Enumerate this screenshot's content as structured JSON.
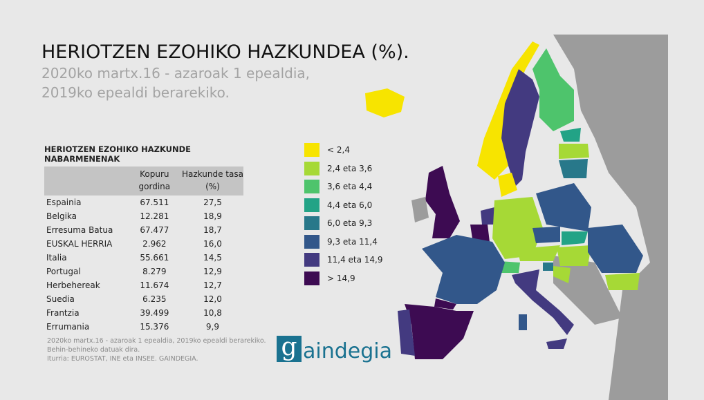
{
  "title": "HERIOTZEN EZOHIKO HAZKUNDEA (%).",
  "subtitle_1": "2020ko martx.16 - azaroak 1 epealdia,",
  "subtitle_2": "2019ko epealdi berarekiko.",
  "table": {
    "title": "HERIOTZEN EZOHIKO HAZKUNDE NABARMENENAK",
    "col2": "Kopuru gordina",
    "col3": "Hazkunde tasa (%)",
    "rows": [
      [
        "Espainia",
        "67.511",
        "27,5"
      ],
      [
        "Belgika",
        "12.281",
        "18,9"
      ],
      [
        "Erresuma Batua",
        "67.477",
        "18,7"
      ],
      [
        "EUSKAL HERRIA",
        "2.962",
        "16,0"
      ],
      [
        "Italia",
        "55.661",
        "14,5"
      ],
      [
        "Portugal",
        "8.279",
        "12,9"
      ],
      [
        "Herbehereak",
        "11.674",
        "12,7"
      ],
      [
        "Suedia",
        "6.235",
        "12,0"
      ],
      [
        "Frantzia",
        "39.499",
        "10,8"
      ],
      [
        "Errumania",
        "15.376",
        "9,9"
      ]
    ]
  },
  "legend": [
    {
      "label": "< 2,4",
      "color": "#f7e400"
    },
    {
      "label": "2,4 eta 3,6",
      "color": "#a6d936"
    },
    {
      "label": "3,6 eta 4,4",
      "color": "#4ec46c"
    },
    {
      "label": "4,4 eta 6,0",
      "color": "#22a386"
    },
    {
      "label": "6,0 eta 9,3",
      "color": "#28788a"
    },
    {
      "label": "9,3 eta 11,4",
      "color": "#32578a"
    },
    {
      "label": "11,4 eta 14,9",
      "color": "#433a80"
    },
    {
      "label": "> 14,9",
      "color": "#3d0b52"
    }
  ],
  "notes": [
    "2020ko martx.16 - azaroak 1 epealdia, 2019ko epealdi berarekiko.",
    "Behin-behineko datuak dira.",
    "Iturria: EUROSTAT, INE eta INSEE. GAINDEGIA."
  ],
  "logo": {
    "letter": "g",
    "text": "aindegia"
  }
}
